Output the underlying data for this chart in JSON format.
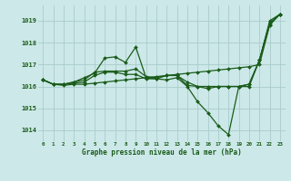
{
  "title": "Graphe pression niveau de la mer (hPa)",
  "bg_color": "#cce8e8",
  "grid_color": "#aacccc",
  "line_color": "#1a5c1a",
  "series": [
    [
      1016.3,
      1016.1,
      1016.1,
      1016.2,
      1016.4,
      1016.6,
      1017.3,
      1017.35,
      1017.1,
      1017.8,
      1016.4,
      1016.35,
      1016.3,
      1016.4,
      1016.0,
      1015.3,
      1014.8,
      1014.2,
      1013.8,
      1016.0,
      1016.0,
      1017.2,
      1019.0,
      1019.3
    ],
    [
      1016.3,
      1016.1,
      1016.1,
      1016.15,
      1016.2,
      1016.5,
      1016.65,
      1016.65,
      1016.55,
      1016.55,
      1016.35,
      1016.35,
      1016.5,
      1016.5,
      1016.05,
      1016.0,
      1016.0,
      1016.0,
      1016.0,
      1016.0,
      1016.1,
      1017.2,
      1018.85,
      1019.3
    ],
    [
      1016.3,
      1016.1,
      1016.1,
      1016.2,
      1016.3,
      1016.65,
      1016.7,
      1016.7,
      1016.7,
      1016.8,
      1016.45,
      1016.4,
      1016.5,
      1016.5,
      1016.2,
      1016.0,
      1015.9,
      1016.0,
      1016.0,
      1016.0,
      1016.1,
      1017.2,
      1018.9,
      1019.3
    ],
    [
      1016.3,
      1016.1,
      1016.05,
      1016.1,
      1016.1,
      1016.15,
      1016.2,
      1016.25,
      1016.3,
      1016.35,
      1016.4,
      1016.45,
      1016.5,
      1016.55,
      1016.6,
      1016.65,
      1016.7,
      1016.75,
      1016.8,
      1016.85,
      1016.9,
      1017.0,
      1018.8,
      1019.3
    ]
  ],
  "ylim": [
    1013.5,
    1019.7
  ],
  "yticks": [
    1014,
    1015,
    1016,
    1017,
    1018,
    1019
  ],
  "xticks": [
    0,
    1,
    2,
    3,
    4,
    5,
    6,
    7,
    8,
    9,
    10,
    11,
    12,
    13,
    14,
    15,
    16,
    17,
    18,
    19,
    20,
    21,
    22,
    23
  ],
  "figsize": [
    3.2,
    2.0
  ],
  "dpi": 100
}
